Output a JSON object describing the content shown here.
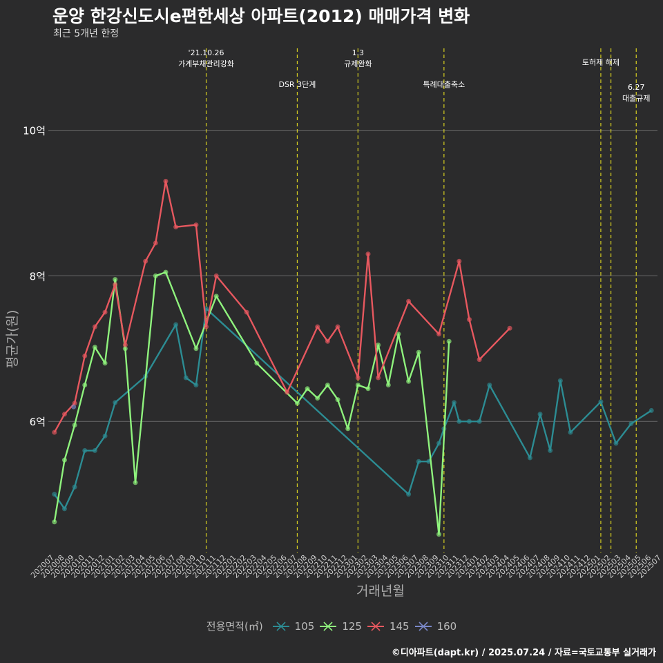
{
  "title": "운양 한강신도시e편한세상 아파트(2012) 매매가격 변화",
  "subtitle": "최근 5개년 한정",
  "caption": "©디아파트(dapt.kr) / 2025.07.24 / 자료=국토교통부 실거래가",
  "chart_data": {
    "type": "line",
    "xlabel": "거래년월",
    "ylabel": "평균가(원)",
    "ylim": [
      4.2,
      11.2
    ],
    "yticks": [
      6,
      8,
      10
    ],
    "ytick_labels": [
      "6억",
      "8억",
      "10억"
    ],
    "grid": true,
    "legend_title": "전용면적(㎡)",
    "legend_position": "bottom",
    "categories": [
      "202007",
      "202008",
      "202009",
      "202010",
      "202011",
      "202012",
      "202101",
      "202102",
      "202103",
      "202104",
      "202105",
      "202106",
      "202107",
      "202108",
      "202109",
      "202110",
      "202111",
      "202112",
      "202201",
      "202202",
      "202203",
      "202204",
      "202205",
      "202206",
      "202207",
      "202208",
      "202209",
      "202210",
      "202211",
      "202212",
      "202301",
      "202302",
      "202303",
      "202304",
      "202305",
      "202306",
      "202307",
      "202308",
      "202309",
      "202310",
      "202311",
      "202312",
      "202401",
      "202402",
      "202403",
      "202404",
      "202405",
      "202406",
      "202407",
      "202408",
      "202409",
      "202410",
      "202411",
      "202412",
      "202501",
      "202502",
      "202503",
      "202504",
      "202505",
      "202506",
      "202507"
    ],
    "tick_step": 0.5,
    "series": [
      {
        "name": "105",
        "color": "#2c8c93",
        "values": [
          [
            0,
            5.0
          ],
          [
            1,
            4.8
          ],
          [
            2,
            5.1
          ],
          [
            3,
            5.6
          ],
          [
            4,
            5.6
          ],
          [
            5,
            5.8
          ],
          [
            6,
            6.26
          ],
          [
            9,
            6.62
          ],
          [
            12,
            7.33
          ],
          [
            13,
            6.6
          ],
          [
            14,
            6.5
          ],
          [
            15,
            7.55
          ],
          [
            35,
            5.0
          ],
          [
            36,
            5.45
          ],
          [
            37,
            5.45
          ],
          [
            38,
            5.7
          ],
          [
            38.5,
            5.9
          ],
          [
            39.5,
            6.26
          ],
          [
            40,
            6.0
          ],
          [
            41,
            6.0
          ],
          [
            42,
            6.0
          ],
          [
            43,
            6.5
          ],
          [
            47,
            5.5
          ],
          [
            48,
            6.1
          ],
          [
            49,
            5.6
          ],
          [
            50,
            6.56
          ],
          [
            51,
            5.85
          ],
          [
            54,
            6.27
          ],
          [
            55.5,
            5.7
          ],
          [
            57,
            5.97
          ],
          [
            59,
            6.15
          ]
        ]
      },
      {
        "name": "125",
        "color": "#8ff37d",
        "values": [
          [
            0,
            4.62
          ],
          [
            1,
            5.47
          ],
          [
            2,
            5.95
          ],
          [
            3,
            6.5
          ],
          [
            4,
            7.02
          ],
          [
            5,
            6.8
          ],
          [
            6,
            7.95
          ],
          [
            7,
            7.0
          ],
          [
            8,
            5.16
          ],
          [
            10,
            8.0
          ],
          [
            11,
            8.05
          ],
          [
            14,
            7.0
          ],
          [
            16,
            7.72
          ],
          [
            20,
            6.8
          ],
          [
            24,
            6.25
          ],
          [
            25,
            6.45
          ],
          [
            26,
            6.32
          ],
          [
            27,
            6.5
          ],
          [
            28,
            6.3
          ],
          [
            29,
            5.9
          ],
          [
            30,
            6.5
          ],
          [
            31,
            6.45
          ],
          [
            32,
            7.05
          ],
          [
            33,
            6.5
          ],
          [
            34,
            7.2
          ],
          [
            35,
            6.55
          ],
          [
            36,
            6.95
          ],
          [
            38,
            4.45
          ],
          [
            39,
            7.1
          ]
        ]
      },
      {
        "name": "145",
        "color": "#e7585f",
        "values": [
          [
            0,
            5.85
          ],
          [
            1,
            6.1
          ],
          [
            2,
            6.25
          ],
          [
            3,
            6.9
          ],
          [
            4,
            7.3
          ],
          [
            5,
            7.5
          ],
          [
            6,
            7.88
          ],
          [
            7,
            7.05
          ],
          [
            9,
            8.2
          ],
          [
            10,
            8.45
          ],
          [
            11,
            9.3
          ],
          [
            12,
            8.67
          ],
          [
            14,
            8.7
          ],
          [
            15,
            7.3
          ],
          [
            16,
            8.0
          ],
          [
            19,
            7.5
          ],
          [
            23,
            6.4
          ],
          [
            26,
            7.3
          ],
          [
            27,
            7.1
          ],
          [
            28,
            7.3
          ],
          [
            30,
            6.6
          ],
          [
            31,
            8.3
          ],
          [
            32,
            6.6
          ],
          [
            35,
            7.65
          ],
          [
            38,
            7.2
          ],
          [
            40,
            8.2
          ],
          [
            41,
            7.4
          ],
          [
            42,
            6.85
          ],
          [
            45,
            7.28
          ]
        ]
      },
      {
        "name": "160",
        "color": "#7a88c9",
        "values": [
          [
            1.9,
            6.2
          ]
        ]
      }
    ],
    "events": [
      {
        "index": 15,
        "label": "'21.10.26\n가계부채관리강화",
        "level": 0
      },
      {
        "index": 24,
        "label": "DSR 3단계",
        "level": 1
      },
      {
        "index": 30,
        "label": "1.3\n규제완화",
        "level": 0
      },
      {
        "index": 38.5,
        "label": "특례대출축소",
        "level": 1
      },
      {
        "index": 54,
        "label": "토허제 해제",
        "level": 0
      },
      {
        "index": 55,
        "label": "",
        "level": 0
      },
      {
        "index": 57.5,
        "label": "6.27\n대출규제",
        "level": 2
      }
    ]
  }
}
